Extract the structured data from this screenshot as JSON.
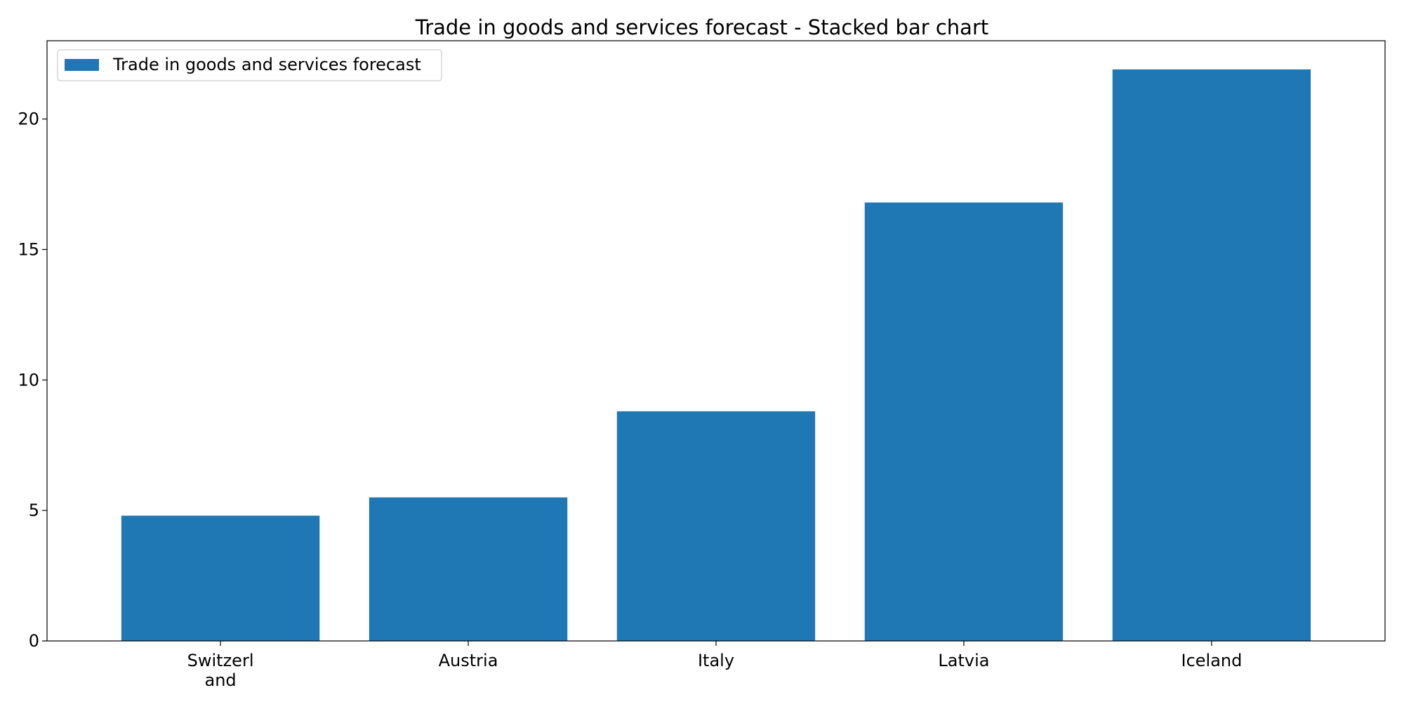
{
  "chart_data": {
    "type": "bar",
    "title": "Trade in goods and services forecast - Stacked bar chart",
    "xlabel": "",
    "ylabel": "",
    "categories": [
      [
        "Switzerl",
        "and"
      ],
      [
        "Austria"
      ],
      [
        "Italy"
      ],
      [
        "Latvia"
      ],
      [
        "Iceland"
      ]
    ],
    "series": [
      {
        "name": "Trade in goods and services forecast",
        "values": [
          4.8,
          5.5,
          8.8,
          16.8,
          21.9
        ],
        "color": "#1f77b4"
      }
    ],
    "ylim": [
      0,
      23.0
    ],
    "yticks": [
      0,
      5,
      10,
      15,
      20
    ],
    "grid": false,
    "legend_position": "top-left"
  }
}
